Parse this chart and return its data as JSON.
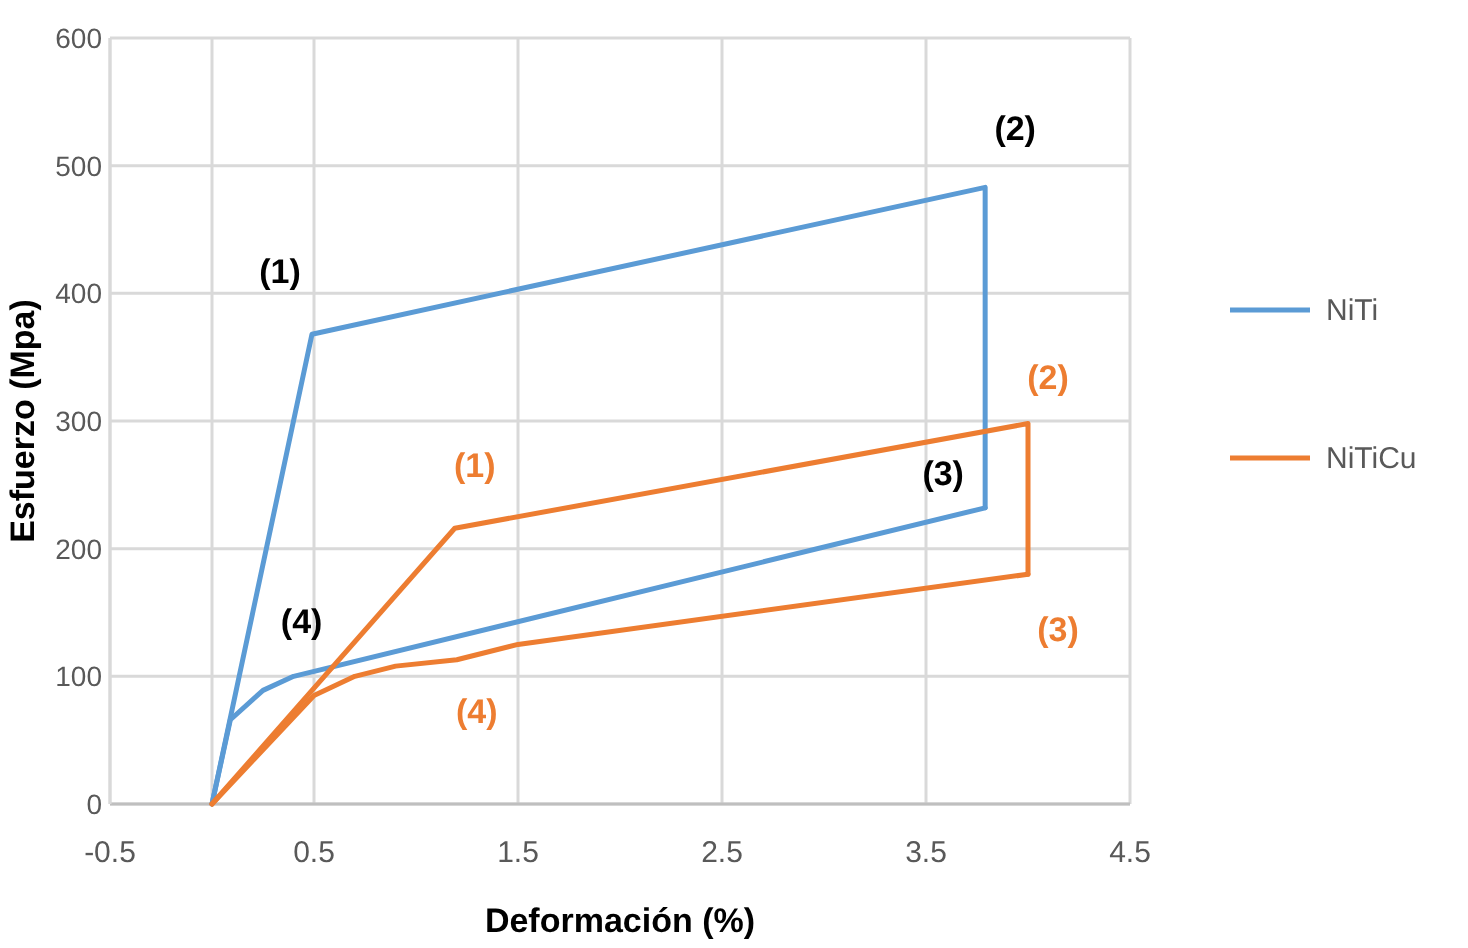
{
  "chart_data": {
    "type": "line",
    "xlabel": "Deformación (%)",
    "ylabel": "Esfuerzo (Mpa)",
    "xlim": [
      -0.5,
      4.5
    ],
    "xticks": [
      -0.5,
      0.5,
      1.5,
      2.5,
      3.5,
      4.5
    ],
    "ylim": [
      0,
      600
    ],
    "yticks": [
      0,
      100,
      200,
      300,
      400,
      500,
      600
    ],
    "grid": true,
    "legend": "right",
    "marker": "none",
    "line_style": "solid",
    "series": [
      {
        "name": "NiTi",
        "color": "#5b9bd5",
        "x": [
          0,
          0.49,
          3.79,
          3.79
        ],
        "values": [
          0,
          368,
          483,
          232
        ]
      },
      {
        "color": "#5b9bd5",
        "x": [
          0,
          0.09,
          0.25,
          0.4,
          3.79
        ],
        "values": [
          0,
          66,
          89,
          100,
          232
        ]
      },
      {
        "name": "NiTiCu",
        "color": "#ed7d31",
        "x": [
          0,
          1.19,
          4.0,
          4.0
        ],
        "values": [
          0,
          216,
          298,
          180
        ]
      },
      {
        "color": "#ed7d31",
        "x": [
          0,
          0.5,
          0.7,
          0.9,
          1.2,
          1.5,
          4.0
        ],
        "values": [
          0,
          85,
          100,
          108,
          113,
          125,
          180
        ]
      }
    ],
    "annotations": [
      {
        "text": "(1)",
        "x": 0.49,
        "y": 368
      },
      {
        "text": "(2)",
        "x": 3.79,
        "y": 483
      },
      {
        "text": "(3)",
        "x": 3.79,
        "y": 232
      },
      {
        "text": "(4)",
        "x": 0.4,
        "y": 100
      },
      {
        "text": "(1)",
        "x": 1.19,
        "y": 216
      },
      {
        "text": "(2)",
        "x": 4.0,
        "y": 298
      },
      {
        "text": "(3)",
        "x": 4.0,
        "y": 180
      },
      {
        "text": "(4)",
        "x": 1.2,
        "y": 113
      }
    ]
  }
}
